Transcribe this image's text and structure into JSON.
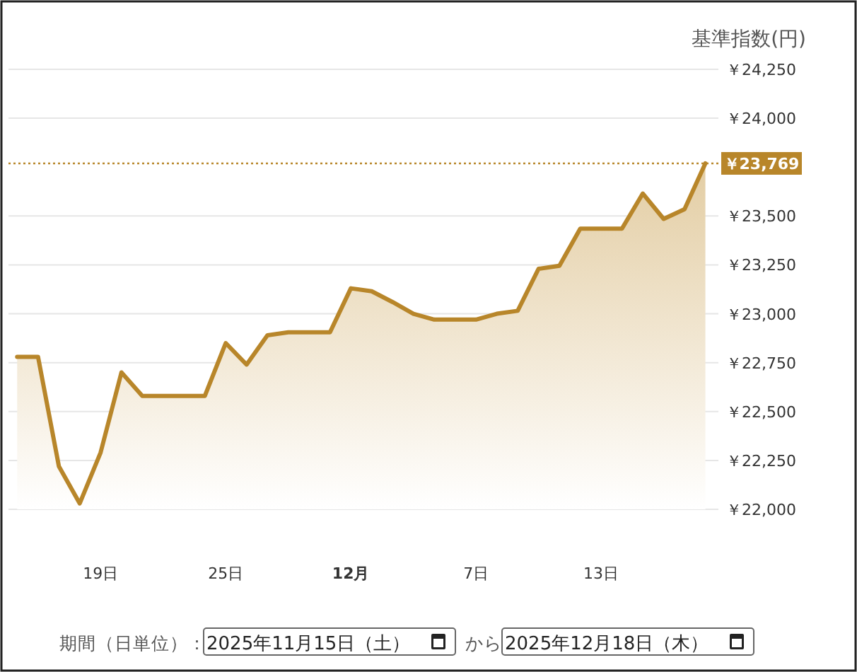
{
  "chart_data": {
    "type": "area",
    "ylabel": "基準指数(円)",
    "x": [
      "2025-11-15",
      "2025-11-16",
      "2025-11-17",
      "2025-11-18",
      "2025-11-19",
      "2025-11-20",
      "2025-11-21",
      "2025-11-22",
      "2025-11-23",
      "2025-11-24",
      "2025-11-25",
      "2025-11-26",
      "2025-11-27",
      "2025-11-28",
      "2025-11-29",
      "2025-11-30",
      "2025-12-01",
      "2025-12-02",
      "2025-12-03",
      "2025-12-04",
      "2025-12-05",
      "2025-12-06",
      "2025-12-07",
      "2025-12-08",
      "2025-12-09",
      "2025-12-10",
      "2025-12-11",
      "2025-12-12",
      "2025-12-13",
      "2025-12-14",
      "2025-12-15",
      "2025-12-16",
      "2025-12-17",
      "2025-12-18"
    ],
    "series": [
      {
        "color": "#b8862a",
        "values": [
          22780,
          22780,
          22220,
          22030,
          22290,
          22700,
          22580,
          22580,
          22580,
          22580,
          22850,
          22740,
          22890,
          22905,
          22905,
          22905,
          23130,
          23115,
          23060,
          23000,
          22970,
          22970,
          22970,
          23000,
          23015,
          23230,
          23245,
          23435,
          23435,
          23435,
          23615,
          23485,
          23535,
          23769
        ]
      }
    ],
    "xlim": [
      "2025-11-14T14:00",
      "2025-12-18T15:00"
    ],
    "xticks": [
      {
        "value": "2025-11-19",
        "label": "19日"
      },
      {
        "value": "2025-11-25",
        "label": "25日"
      },
      {
        "value": "2025-12-01",
        "label": "**12月**"
      },
      {
        "value": "2025-12-07",
        "label": "7日"
      },
      {
        "value": "2025-12-13",
        "label": "13日"
      }
    ],
    "ylim": [
      22000,
      24250
    ],
    "yticks": [
      {
        "value": 22000,
        "label": "￥22,000"
      },
      {
        "value": 22250,
        "label": "￥22,250"
      },
      {
        "value": 22500,
        "label": "￥22,500"
      },
      {
        "value": 22750,
        "label": "￥22,750"
      },
      {
        "value": 23000,
        "label": "￥23,000"
      },
      {
        "value": 23250,
        "label": "￥23,250"
      },
      {
        "value": 23500,
        "label": "￥23,500"
      },
      {
        "value": 24000,
        "label": "￥24,000"
      },
      {
        "value": 24250,
        "label": "￥24,250"
      }
    ],
    "ref_lines": [
      {
        "axis": "y",
        "value": 23769,
        "label": "￥23,769",
        "color": "#b8862a",
        "line_style": "dotted"
      }
    ],
    "grid": "y",
    "marker": "none",
    "line_style": "solid",
    "annotations": [
      "期間（日単位）：",
      "2025年11月15日（土）",
      "から",
      "2025年12月18日（木）"
    ]
  }
}
